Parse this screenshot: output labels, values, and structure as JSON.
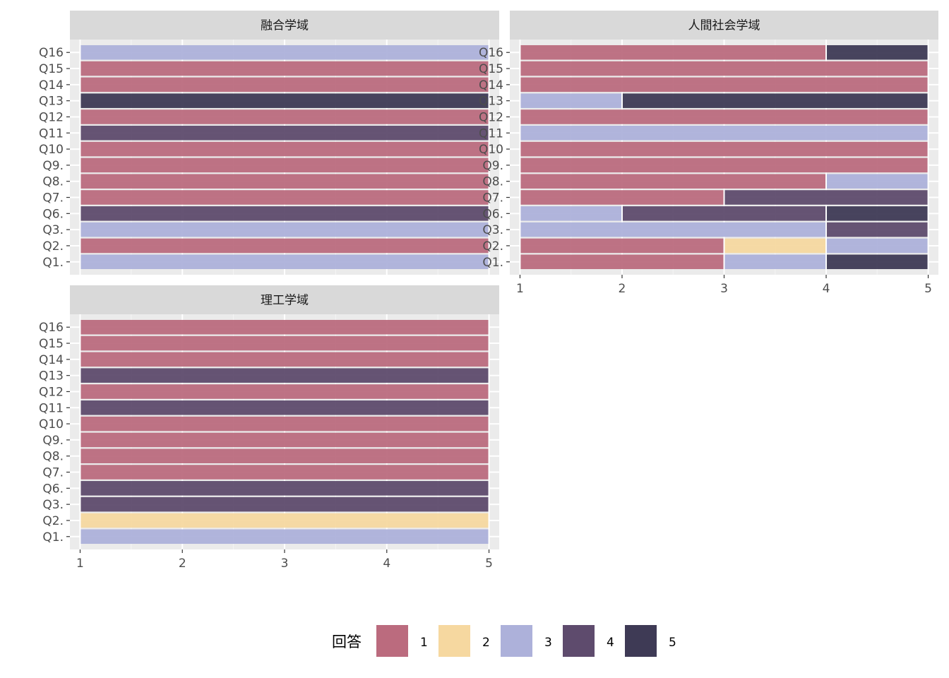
{
  "chart_data": {
    "type": "bar",
    "orientation": "horizontal",
    "legend": {
      "title": "回答",
      "position": "bottom",
      "levels": [
        "1",
        "2",
        "3",
        "4",
        "5"
      ],
      "colors": [
        "#bb6b7e",
        "#f6d8a0",
        "#adb1da",
        "#5e4b6d",
        "#3e3a55"
      ]
    },
    "categories": [
      "Q1.",
      "Q2.",
      "Q3.",
      "Q6.",
      "Q7.",
      "Q8.",
      "Q9.",
      "Q10",
      "Q11",
      "Q12",
      "Q13",
      "Q14",
      "Q15",
      "Q16"
    ],
    "x_ticks": [
      "1",
      "2",
      "3",
      "4",
      "5"
    ],
    "xlim": [
      0.9,
      5.1
    ],
    "panels": [
      {
        "title": "融合学域",
        "counts": {
          "Q1.": [
            0,
            0,
            1,
            0,
            0
          ],
          "Q2.": [
            1,
            0,
            0,
            0,
            0
          ],
          "Q3.": [
            0,
            0,
            1,
            0,
            0
          ],
          "Q6.": [
            0,
            0,
            0,
            1,
            0
          ],
          "Q7.": [
            1,
            0,
            0,
            0,
            0
          ],
          "Q8.": [
            1,
            0,
            0,
            0,
            0
          ],
          "Q9.": [
            1,
            0,
            0,
            0,
            0
          ],
          "Q10": [
            1,
            0,
            0,
            0,
            0
          ],
          "Q11": [
            0,
            0,
            0,
            1,
            0
          ],
          "Q12": [
            1,
            0,
            0,
            0,
            0
          ],
          "Q13": [
            0,
            0,
            0,
            0,
            1
          ],
          "Q14": [
            1,
            0,
            0,
            0,
            0
          ],
          "Q15": [
            1,
            0,
            0,
            0,
            0
          ],
          "Q16": [
            0,
            0,
            1,
            0,
            0
          ]
        }
      },
      {
        "title": "人間社会学域",
        "counts": {
          "Q1.": [
            2,
            0,
            1,
            0,
            1
          ],
          "Q2.": [
            2,
            1,
            1,
            0,
            0
          ],
          "Q3.": [
            0,
            0,
            3,
            1,
            0
          ],
          "Q6.": [
            0,
            0,
            1,
            2,
            1
          ],
          "Q7.": [
            2,
            0,
            0,
            2,
            0
          ],
          "Q8.": [
            3,
            0,
            1,
            0,
            0
          ],
          "Q9.": [
            4,
            0,
            0,
            0,
            0
          ],
          "Q10": [
            4,
            0,
            0,
            0,
            0
          ],
          "Q11": [
            0,
            0,
            4,
            0,
            0
          ],
          "Q12": [
            4,
            0,
            0,
            0,
            0
          ],
          "Q13": [
            0,
            0,
            1,
            0,
            3
          ],
          "Q14": [
            4,
            0,
            0,
            0,
            0
          ],
          "Q15": [
            4,
            0,
            0,
            0,
            0
          ],
          "Q16": [
            3,
            0,
            0,
            0,
            1
          ]
        }
      },
      {
        "title": "理工学域",
        "counts": {
          "Q1.": [
            0,
            0,
            1,
            0,
            0
          ],
          "Q2.": [
            0,
            1,
            0,
            0,
            0
          ],
          "Q3.": [
            0,
            0,
            0,
            1,
            0
          ],
          "Q6.": [
            0,
            0,
            0,
            1,
            0
          ],
          "Q7.": [
            1,
            0,
            0,
            0,
            0
          ],
          "Q8.": [
            1,
            0,
            0,
            0,
            0
          ],
          "Q9.": [
            1,
            0,
            0,
            0,
            0
          ],
          "Q10": [
            1,
            0,
            0,
            0,
            0
          ],
          "Q11": [
            0,
            0,
            0,
            1,
            0
          ],
          "Q12": [
            1,
            0,
            0,
            0,
            0
          ],
          "Q13": [
            0,
            0,
            0,
            1,
            0
          ],
          "Q14": [
            1,
            0,
            0,
            0,
            0
          ],
          "Q15": [
            1,
            0,
            0,
            0,
            0
          ],
          "Q16": [
            1,
            0,
            0,
            0,
            0
          ]
        }
      }
    ]
  }
}
